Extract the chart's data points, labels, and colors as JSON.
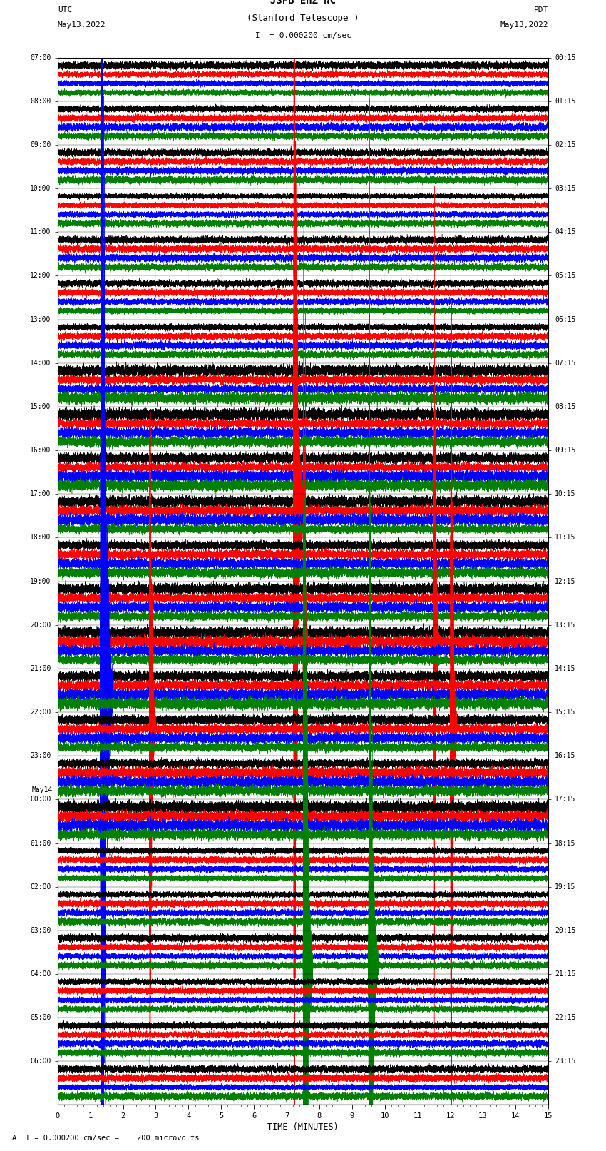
{
  "title_line1": "JSFB EHZ NC",
  "title_line2": "(Stanford Telescope )",
  "scale_label": "I = 0.000200 cm/sec",
  "footer_label": "A  I = 0.000200 cm/sec =    200 microvolts",
  "utc_label": "UTC",
  "utc_date": "May13,2022",
  "pdt_label": "PDT",
  "pdt_date": "May13,2022",
  "xlabel": "TIME (MINUTES)",
  "left_times": [
    "07:00",
    "08:00",
    "09:00",
    "10:00",
    "11:00",
    "12:00",
    "13:00",
    "14:00",
    "15:00",
    "16:00",
    "17:00",
    "18:00",
    "19:00",
    "20:00",
    "21:00",
    "22:00",
    "23:00",
    "May14",
    "00:00",
    "01:00",
    "02:00",
    "03:00",
    "04:00",
    "05:00",
    "06:00"
  ],
  "left_times_special": [
    17
  ],
  "right_times": [
    "00:15",
    "01:15",
    "02:15",
    "03:15",
    "04:15",
    "05:15",
    "06:15",
    "07:15",
    "08:15",
    "09:15",
    "10:15",
    "11:15",
    "12:15",
    "13:15",
    "14:15",
    "15:15",
    "16:15",
    "17:15",
    "18:15",
    "19:15",
    "20:15",
    "21:15",
    "22:15",
    "23:15"
  ],
  "colors": [
    "black",
    "red",
    "blue",
    "green"
  ],
  "n_rows": 24,
  "n_traces_per_row": 4,
  "minutes": 15,
  "bg_color": "white"
}
